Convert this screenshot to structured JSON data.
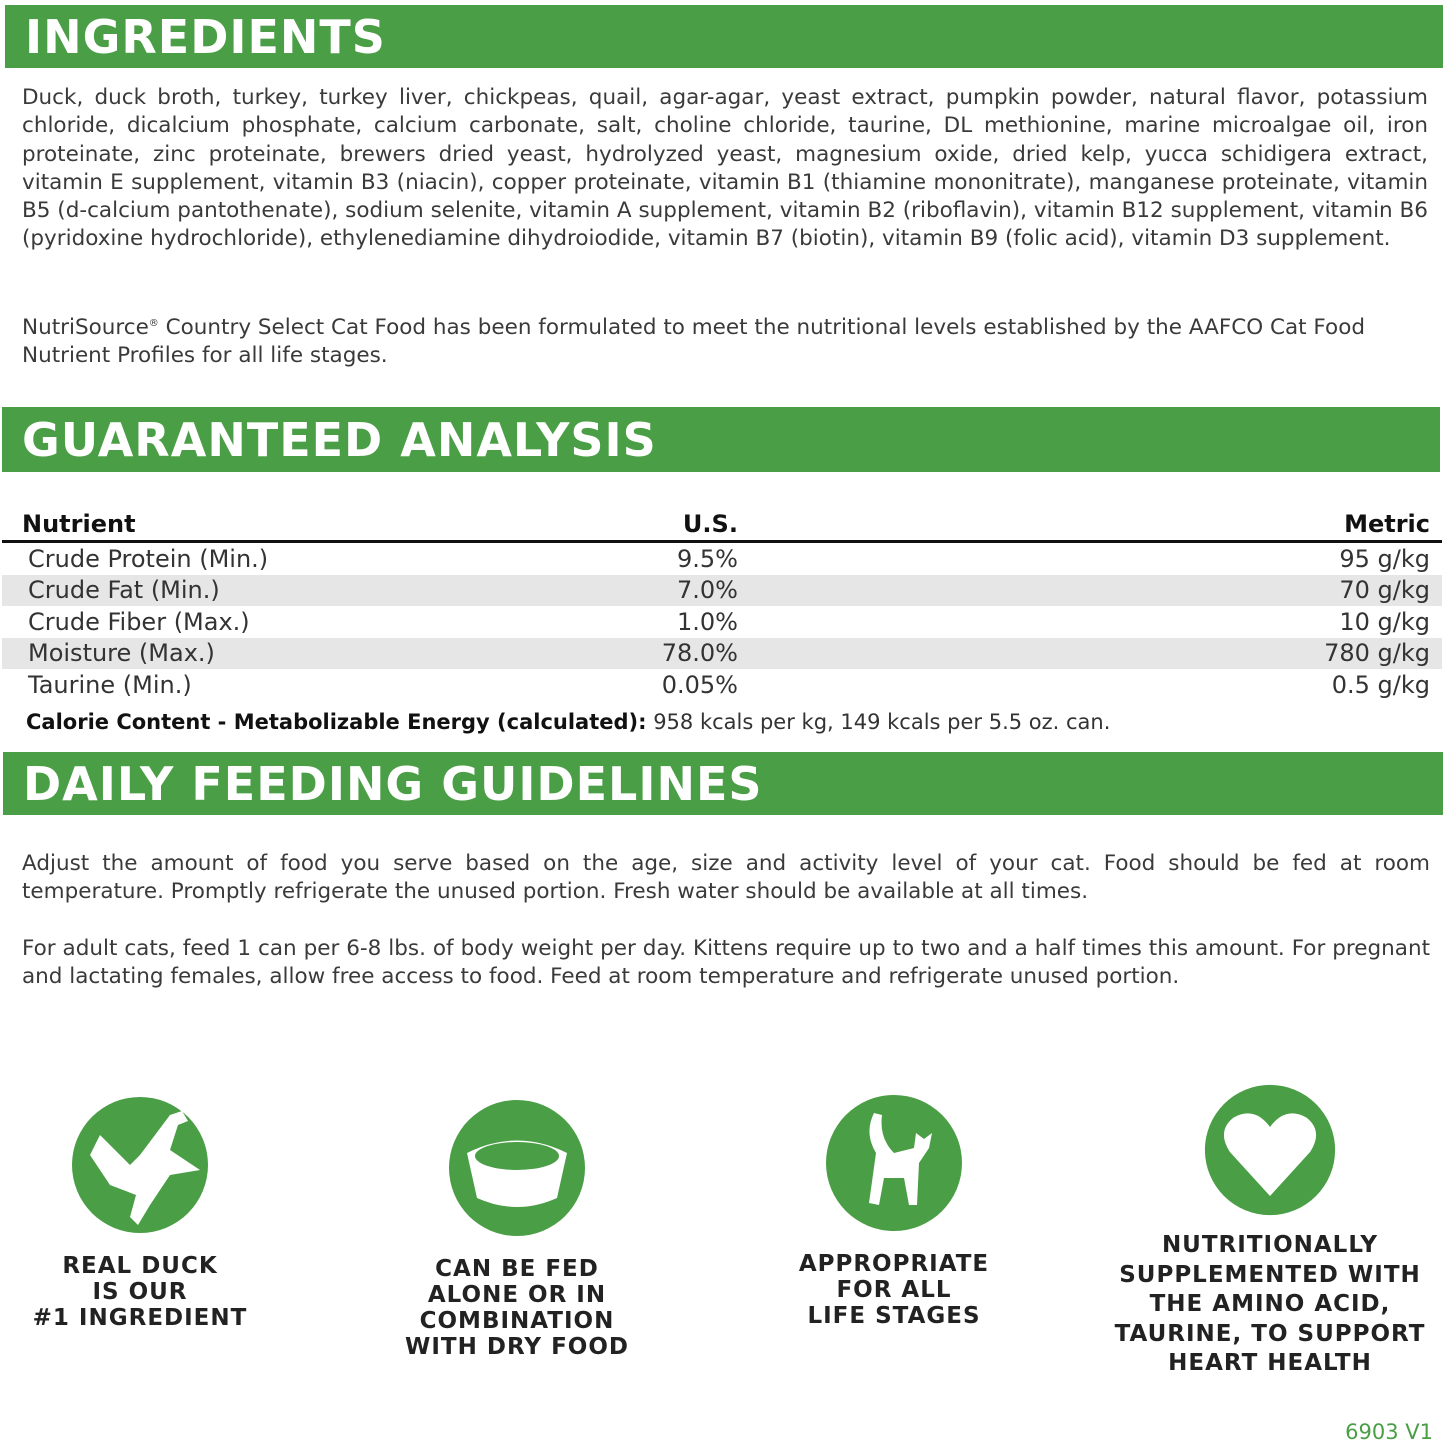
{
  "colors": {
    "brand_green": "#4a9e45",
    "row_alt": "#e6e6e6"
  },
  "ingredients": {
    "title": "INGREDIENTS",
    "text": "Duck, duck broth, turkey, turkey liver, chickpeas, quail, agar-agar, yeast extract, pumpkin powder, natural flavor, potassium chloride, dicalcium phosphate, calcium carbonate, salt, choline chloride, taurine, DL methionine, marine microalgae oil, iron proteinate, zinc proteinate, brewers dried yeast, hydrolyzed yeast, magnesium oxide, dried kelp, yucca schidigera ex­tract, vitamin E supplement, vitamin B3 (niacin), copper proteinate, vitamin B1 (thiamine mononitrate), manganese pro­teinate, vitamin B5 (d-calcium pantothenate), sodium selenite, vitamin A supplement, vitamin B2 (riboflavin), vitamin B12 supplement, vitamin B6 (pyridoxine hydrochloride), ethylenediamine dihydroiodide, vitamin B7 (biotin), vitamin B9 (folic acid), vitamin D3 supplement.",
    "statement_brand": "NutriSource",
    "statement_reg": "®",
    "statement_rest": " Country Select Cat Food has been formulated to meet the nutritional levels established by the AAFCO Cat Food Nutrient Profiles for all life stages."
  },
  "analysis": {
    "title": "GUARANTEED ANALYSIS",
    "headers": [
      "Nutrient",
      "U.S.",
      "Metric"
    ],
    "rows": [
      [
        "Crude Protein (Min.)",
        "9.5%",
        "95 g/kg"
      ],
      [
        "Crude Fat (Min.)",
        "7.0%",
        "70 g/kg"
      ],
      [
        "Crude Fiber (Max.)",
        "1.0%",
        "10 g/kg"
      ],
      [
        "Moisture (Max.)",
        "78.0%",
        "780 g/kg"
      ],
      [
        "Taurine (Min.)",
        "0.05%",
        "0.5 g/kg"
      ]
    ],
    "calorie_label": "Calorie Content - Metabolizable Energy (calculated):",
    "calorie_value": " 958 kcals per kg, 149 kcals per 5.5 oz. can."
  },
  "feeding": {
    "title": "DAILY FEEDING GUIDELINES",
    "p1": "Adjust the amount of food you serve based on the age, size and activity level of your cat. Food should be fed at room temperature. Promptly refrigerate the unused portion. Fresh water should be available at all times.",
    "p2": "For adult cats, feed 1 can per 6-8 lbs. of body weight per day. Kittens require up to two and a half times this amount. For pregnant and lactating females, allow free access to food. Feed at room temperature and refrigerate unused portion."
  },
  "features": [
    {
      "icon": "duck-icon",
      "lines": [
        "REAL DUCK",
        "IS OUR",
        "#1 INGREDIENT"
      ]
    },
    {
      "icon": "bowl-icon",
      "lines": [
        "CAN BE FED",
        "ALONE OR IN",
        "COMBINATION",
        "WITH DRY FOOD"
      ]
    },
    {
      "icon": "cat-icon",
      "lines": [
        "APPROPRIATE",
        "FOR ALL",
        "LIFE STAGES"
      ]
    },
    {
      "icon": "heart-icon",
      "lines": [
        "NUTRITIONALLY",
        "SUPPLEMENTED WITH",
        "THE AMINO ACID,",
        "TAURINE, TO SUPPORT",
        "HEART HEALTH"
      ]
    }
  ],
  "code": "6903 V1"
}
